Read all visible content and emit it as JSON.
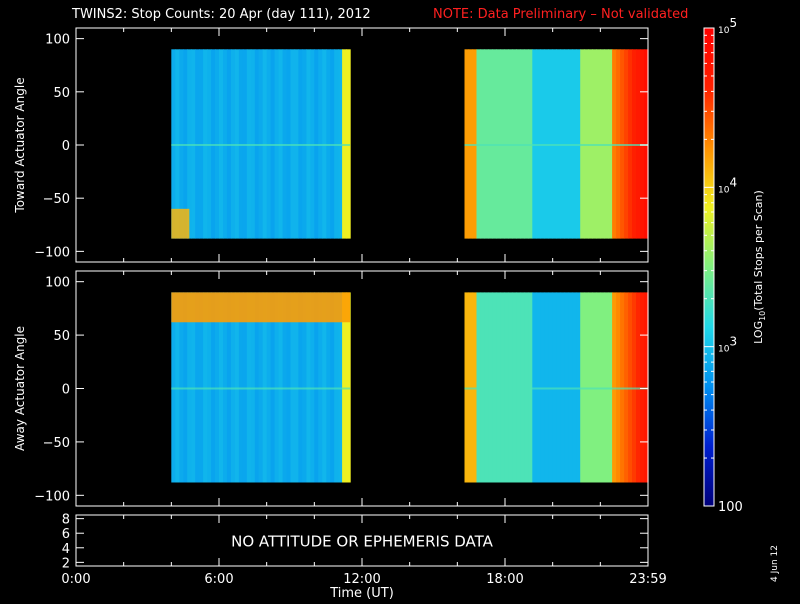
{
  "title": "TWINS2: Stop Counts: 20 Apr (day 111), 2012",
  "note": "NOTE: Data Preliminary – Not validated",
  "date_stamp": "4 Jun 12",
  "status_text": "NO ATTITUDE OR EPHEMERIS DATA",
  "colors": {
    "background": "#000000",
    "axes": "#ffffff",
    "note": "#ff2020"
  },
  "chart_data": [
    {
      "type": "heatmap",
      "title": "",
      "ylabel": "Toward Actuator Angle",
      "xlabel": "",
      "xlim": [
        0,
        24
      ],
      "ylim": [
        -110,
        110
      ],
      "yticks": [
        -100,
        -50,
        0,
        50,
        100
      ],
      "grid": false,
      "data_blocks": [
        {
          "x_start": 4.0,
          "x_end": 11.5,
          "y_start": -88,
          "y_end": 90,
          "typical_log10_counts": 2.9
        },
        {
          "x_start": 16.3,
          "x_end": 24.0,
          "y_start": -88,
          "y_end": 90,
          "typical_log10_counts": 3.4
        }
      ]
    },
    {
      "type": "heatmap",
      "title": "",
      "ylabel": "Away Actuator Angle",
      "xlabel": "",
      "xlim": [
        0,
        24
      ],
      "ylim": [
        -110,
        110
      ],
      "yticks": [
        -100,
        -50,
        0,
        50,
        100
      ],
      "grid": false,
      "data_blocks": [
        {
          "x_start": 4.0,
          "x_end": 11.5,
          "y_start": -88,
          "y_end": 90,
          "typical_log10_counts": 2.9
        },
        {
          "x_start": 16.3,
          "x_end": 24.0,
          "y_start": -88,
          "y_end": 90,
          "typical_log10_counts": 3.3
        }
      ]
    },
    {
      "type": "line",
      "title": "",
      "xlabel": "Time (UT)",
      "ylabel": "",
      "xlim": [
        0,
        24
      ],
      "ylim": [
        1.5,
        8.5
      ],
      "yticks": [
        2,
        4,
        6,
        8
      ],
      "xticks": [
        0,
        6,
        12,
        18,
        24
      ],
      "xtick_labels": [
        "0:00",
        "6:00",
        "12:00",
        "18:00",
        "23:59"
      ],
      "series": []
    }
  ],
  "colorbar": {
    "label_html": "LOG10(Total Stops per Scan)",
    "label_parts": {
      "pre": "LOG",
      "sub": "10",
      "post": "(Total Stops per Scan)"
    },
    "scale": "log",
    "range": [
      100,
      100000
    ],
    "ticks": [
      {
        "value": 100,
        "text": "100"
      },
      {
        "value": 1000,
        "base": "10",
        "exp": "3"
      },
      {
        "value": 10000,
        "base": "10",
        "exp": "4"
      },
      {
        "value": 100000,
        "base": "10",
        "exp": "5"
      }
    ],
    "colormap": [
      "#00007a",
      "#0020d0",
      "#0090f0",
      "#20d8e8",
      "#80f080",
      "#f0f020",
      "#ff9000",
      "#ff2000",
      "#ff0000"
    ]
  }
}
